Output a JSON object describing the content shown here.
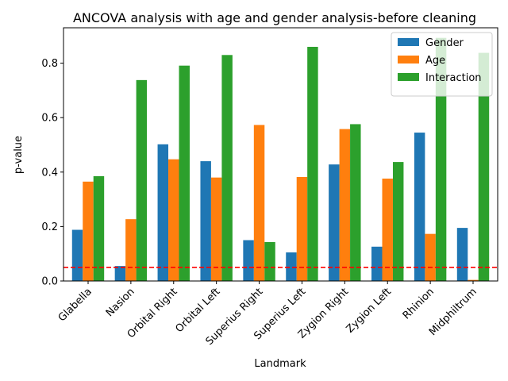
{
  "chart_data": {
    "type": "bar",
    "title": "ANCOVA analysis with age and gender analysis-before cleaning",
    "xlabel": "Landmark",
    "ylabel": "p-value",
    "ylim": [
      0,
      0.93
    ],
    "yticks": [
      0.0,
      0.2,
      0.4,
      0.6,
      0.8
    ],
    "ytick_labels": [
      "0.0",
      "0.2",
      "0.4",
      "0.6",
      "0.8"
    ],
    "categories": [
      "Glabella",
      "Nasion",
      "Orbital Right",
      "Orbital Left",
      "Superius Right",
      "Superius Left",
      "Zygion Right",
      "Zygion Left",
      "Rhinion",
      "Midphiltrum"
    ],
    "series": [
      {
        "name": "Gender",
        "color": "#1f77b4",
        "values": [
          0.188,
          0.055,
          0.502,
          0.44,
          0.15,
          0.105,
          0.428,
          0.126,
          0.545,
          0.195
        ]
      },
      {
        "name": "Age",
        "color": "#ff7f0e",
        "values": [
          0.365,
          0.227,
          0.447,
          0.38,
          0.573,
          0.382,
          0.558,
          0.376,
          0.173,
          0.004
        ]
      },
      {
        "name": "Interaction",
        "color": "#2ca02c",
        "values": [
          0.385,
          0.738,
          0.791,
          0.83,
          0.143,
          0.86,
          0.576,
          0.437,
          0.893,
          0.838
        ]
      }
    ],
    "reference_line": {
      "y": 0.05,
      "color": "#ff0000",
      "style": "dashed"
    },
    "legend": {
      "placement": "top-right"
    },
    "grid": false
  }
}
